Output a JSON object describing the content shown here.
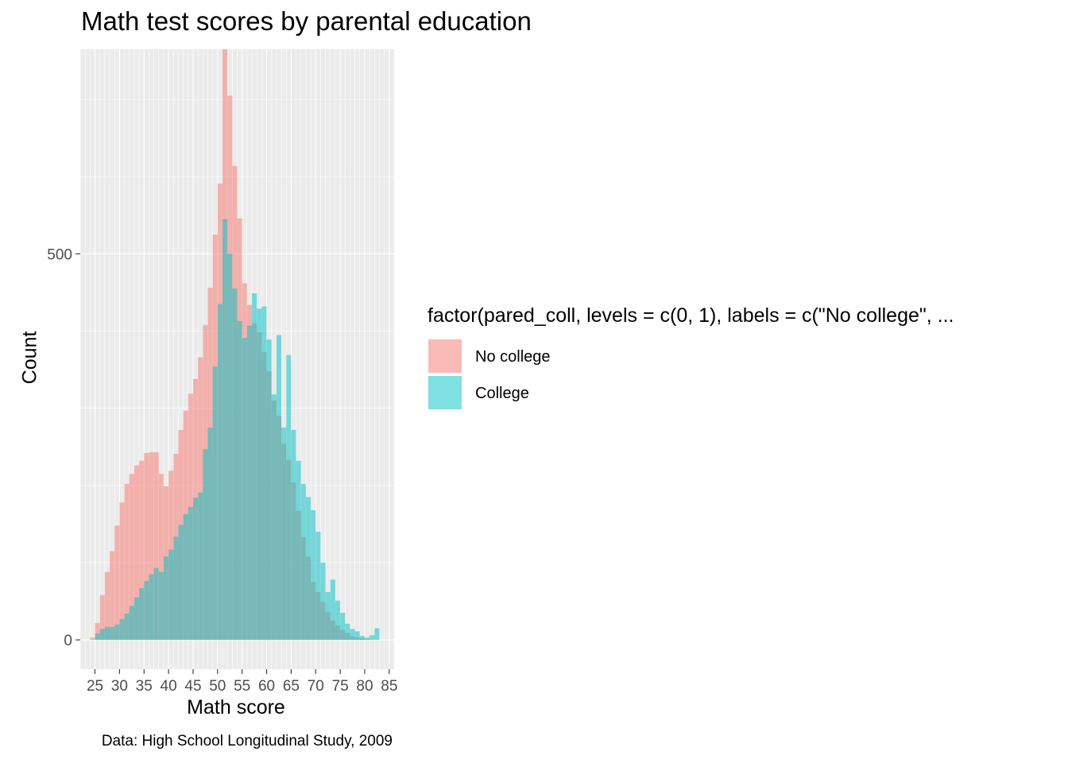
{
  "chart_data": {
    "type": "histogram",
    "title": "Math test scores by parental education",
    "xlabel": "Math score",
    "ylabel": "Count",
    "caption": "Data: High School Longitudinal Study, 2009",
    "legend_title": "factor(pared_coll, levels = c(0, 1), labels = c(\"No college\", ...",
    "legend_position": "right",
    "grid": true,
    "xlim": [
      22,
      86
    ],
    "ylim": [
      -38,
      765
    ],
    "x_breaks": [
      25,
      30,
      35,
      40,
      45,
      50,
      55,
      60,
      65,
      70,
      75,
      80,
      85
    ],
    "y_breaks": [
      0,
      500
    ],
    "bin_width": 1,
    "bin_starts": [
      24,
      25,
      26,
      27,
      28,
      29,
      30,
      31,
      32,
      33,
      34,
      35,
      36,
      37,
      38,
      39,
      40,
      41,
      42,
      43,
      44,
      45,
      46,
      47,
      48,
      49,
      50,
      51,
      52,
      53,
      54,
      55,
      56,
      57,
      58,
      59,
      60,
      61,
      62,
      63,
      64,
      65,
      66,
      67,
      68,
      69,
      70,
      71,
      72,
      73,
      74,
      75,
      76,
      77,
      78,
      79,
      80,
      81,
      82
    ],
    "series": [
      {
        "name": "No college",
        "color": "#F8766D",
        "values": [
          3,
          22,
          58,
          88,
          115,
          148,
          178,
          202,
          215,
          226,
          232,
          242,
          243,
          243,
          215,
          199,
          219,
          241,
          272,
          297,
          319,
          338,
          366,
          408,
          456,
          525,
          591,
          765,
          705,
          614,
          546,
          462,
          434,
          410,
          398,
          373,
          348,
          310,
          290,
          254,
          233,
          204,
          167,
          133,
          108,
          75,
          62,
          49,
          36,
          25,
          19,
          13,
          9,
          5,
          3,
          2,
          1,
          0,
          0
        ]
      },
      {
        "name": "College",
        "color": "#00BFC4",
        "values": [
          0,
          8,
          14,
          17,
          17,
          20,
          27,
          34,
          44,
          55,
          67,
          76,
          85,
          93,
          88,
          108,
          117,
          134,
          149,
          163,
          172,
          184,
          191,
          247,
          275,
          354,
          435,
          545,
          500,
          455,
          413,
          391,
          407,
          449,
          429,
          432,
          389,
          318,
          395,
          275,
          369,
          272,
          232,
          202,
          185,
          168,
          140,
          100,
          62,
          78,
          51,
          35,
          21,
          14,
          11,
          5,
          3,
          6,
          15
        ]
      }
    ]
  }
}
